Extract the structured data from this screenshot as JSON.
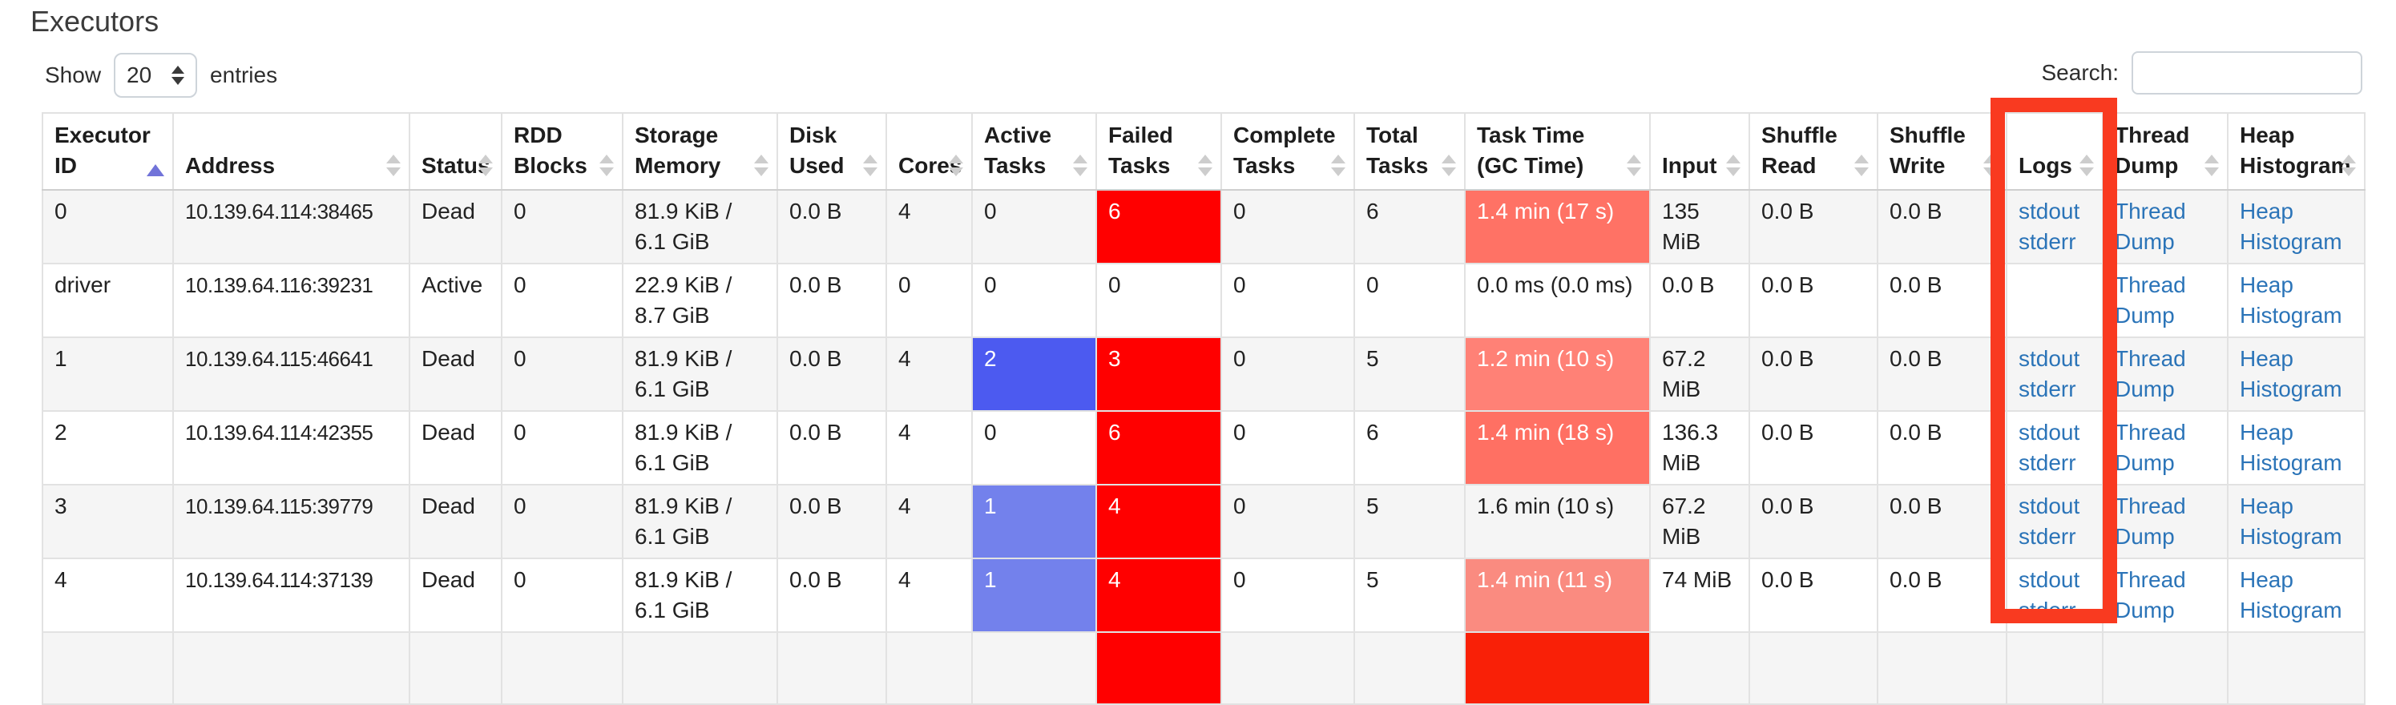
{
  "page_title": "Executors",
  "length_control": {
    "show": "Show",
    "value": "20",
    "entries": "entries"
  },
  "search": {
    "label": "Search:",
    "value": ""
  },
  "colors": {
    "failed_bg": "#ff0000",
    "active_bg_dark": "#4c5af0",
    "active_bg_light": "#7381ec",
    "link": "#2b74b8",
    "annotation_box": "#f93a20"
  },
  "columns": [
    {
      "key": "id",
      "label": "Executor ID",
      "sort": "asc"
    },
    {
      "key": "address",
      "label": "Address",
      "sort": "none"
    },
    {
      "key": "status",
      "label": "Status",
      "sort": "none"
    },
    {
      "key": "rdd_blocks",
      "label": "RDD Blocks",
      "sort": "none"
    },
    {
      "key": "storage_memory",
      "label": "Storage Memory",
      "sort": "none"
    },
    {
      "key": "disk_used",
      "label": "Disk Used",
      "sort": "none"
    },
    {
      "key": "cores",
      "label": "Cores",
      "sort": "none"
    },
    {
      "key": "active_tasks",
      "label": "Active Tasks",
      "sort": "none"
    },
    {
      "key": "failed_tasks",
      "label": "Failed Tasks",
      "sort": "none"
    },
    {
      "key": "complete_tasks",
      "label": "Complete Tasks",
      "sort": "none"
    },
    {
      "key": "total_tasks",
      "label": "Total Tasks",
      "sort": "none"
    },
    {
      "key": "task_time",
      "label": "Task Time (GC Time)",
      "sort": "none"
    },
    {
      "key": "input",
      "label": "Input",
      "sort": "none"
    },
    {
      "key": "shuffle_read",
      "label": "Shuffle Read",
      "sort": "none"
    },
    {
      "key": "shuffle_write",
      "label": "Shuffle Write",
      "sort": "none"
    },
    {
      "key": "logs",
      "label": "Logs",
      "sort": "none"
    },
    {
      "key": "thread_dump",
      "label": "Thread Dump",
      "sort": "none"
    },
    {
      "key": "heap_histogram",
      "label": "Heap Histogram",
      "sort": "none"
    }
  ],
  "rows": [
    {
      "id": "0",
      "address": "10.139.64.114:38465",
      "status": "Dead",
      "rdd_blocks": "0",
      "storage_memory": "81.9 KiB / 6.1 GiB",
      "disk_used": "0.0 B",
      "cores": "4",
      "active_tasks": "0",
      "failed_tasks": "6",
      "complete_tasks": "0",
      "total_tasks": "6",
      "task_time": "1.4 min (17 s)",
      "input": "135 MiB",
      "shuffle_read": "0.0 B",
      "shuffle_write": "0.0 B",
      "logs": [
        "stdout",
        "stderr"
      ],
      "thread_dump": "Thread Dump",
      "heap_histogram": "Heap Histogram",
      "active_bg": "",
      "failed_bg": "#ff0000",
      "task_time_bg": "#ff7265"
    },
    {
      "id": "driver",
      "address": "10.139.64.116:39231",
      "status": "Active",
      "rdd_blocks": "0",
      "storage_memory": "22.9 KiB / 8.7 GiB",
      "disk_used": "0.0 B",
      "cores": "0",
      "active_tasks": "0",
      "failed_tasks": "0",
      "complete_tasks": "0",
      "total_tasks": "0",
      "task_time": "0.0 ms (0.0 ms)",
      "input": "0.0 B",
      "shuffle_read": "0.0 B",
      "shuffle_write": "0.0 B",
      "logs": [],
      "thread_dump": "Thread Dump",
      "heap_histogram": "Heap Histogram",
      "active_bg": "",
      "failed_bg": "",
      "task_time_bg": ""
    },
    {
      "id": "1",
      "address": "10.139.64.115:46641",
      "status": "Dead",
      "rdd_blocks": "0",
      "storage_memory": "81.9 KiB / 6.1 GiB",
      "disk_used": "0.0 B",
      "cores": "4",
      "active_tasks": "2",
      "failed_tasks": "3",
      "complete_tasks": "0",
      "total_tasks": "5",
      "task_time": "1.2 min (10 s)",
      "input": "67.2 MiB",
      "shuffle_read": "0.0 B",
      "shuffle_write": "0.0 B",
      "logs": [
        "stdout",
        "stderr"
      ],
      "thread_dump": "Thread Dump",
      "heap_histogram": "Heap Histogram",
      "active_bg": "#4c5af0",
      "failed_bg": "#ff0000",
      "task_time_bg": "#ff8176"
    },
    {
      "id": "2",
      "address": "10.139.64.114:42355",
      "status": "Dead",
      "rdd_blocks": "0",
      "storage_memory": "81.9 KiB / 6.1 GiB",
      "disk_used": "0.0 B",
      "cores": "4",
      "active_tasks": "0",
      "failed_tasks": "6",
      "complete_tasks": "0",
      "total_tasks": "6",
      "task_time": "1.4 min (18 s)",
      "input": "136.3 MiB",
      "shuffle_read": "0.0 B",
      "shuffle_write": "0.0 B",
      "logs": [
        "stdout",
        "stderr"
      ],
      "thread_dump": "Thread Dump",
      "heap_histogram": "Heap Histogram",
      "active_bg": "",
      "failed_bg": "#ff0000",
      "task_time_bg": "#ff7063"
    },
    {
      "id": "3",
      "address": "10.139.64.115:39779",
      "status": "Dead",
      "rdd_blocks": "0",
      "storage_memory": "81.9 KiB / 6.1 GiB",
      "disk_used": "0.0 B",
      "cores": "4",
      "active_tasks": "1",
      "failed_tasks": "4",
      "complete_tasks": "0",
      "total_tasks": "5",
      "task_time": "1.6 min (10 s)",
      "input": "67.2 MiB",
      "shuffle_read": "0.0 B",
      "shuffle_write": "0.0 B",
      "logs": [
        "stdout",
        "stderr"
      ],
      "thread_dump": "Thread Dump",
      "heap_histogram": "Heap Histogram",
      "active_bg": "#7381ec",
      "failed_bg": "#ff0000",
      "task_time_bg": ""
    },
    {
      "id": "4",
      "address": "10.139.64.114:37139",
      "status": "Dead",
      "rdd_blocks": "0",
      "storage_memory": "81.9 KiB / 6.1 GiB",
      "disk_used": "0.0 B",
      "cores": "4",
      "active_tasks": "1",
      "failed_tasks": "4",
      "complete_tasks": "0",
      "total_tasks": "5",
      "task_time": "1.4 min (11 s)",
      "input": "74 MiB",
      "shuffle_read": "0.0 B",
      "shuffle_write": "0.0 B",
      "logs": [
        "stdout",
        "stderr"
      ],
      "thread_dump": "Thread Dump",
      "heap_histogram": "Heap Histogram",
      "active_bg": "#7381ec",
      "failed_bg": "#ff0000",
      "task_time_bg": "#fa8b80"
    },
    {
      "id": "",
      "address": "",
      "status": "",
      "rdd_blocks": "",
      "storage_memory": "",
      "disk_used": "",
      "cores": "",
      "active_tasks": "",
      "failed_tasks": "",
      "complete_tasks": "",
      "total_tasks": "",
      "task_time": "",
      "input": "",
      "shuffle_read": "",
      "shuffle_write": "",
      "logs": [],
      "thread_dump": "",
      "heap_histogram": "",
      "active_bg": "",
      "failed_bg": "#ff0000",
      "task_time_bg": "#f92007"
    }
  ]
}
